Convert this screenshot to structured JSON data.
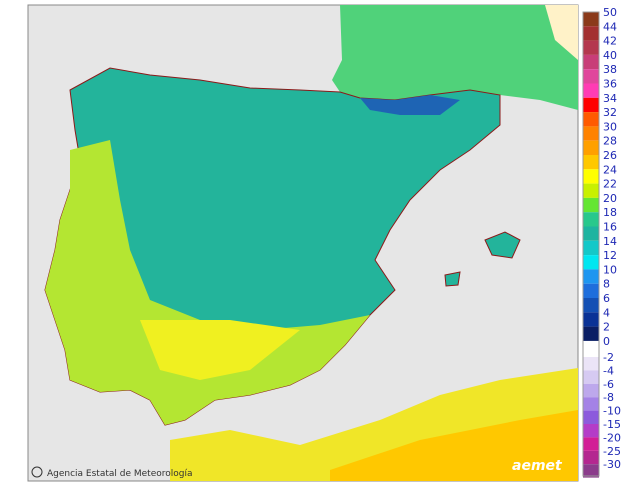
{
  "map": {
    "attribution": "Agencia Estatal de Meteorología",
    "logo": "aemet",
    "legend_positive": [
      {
        "label": "50",
        "color": "#8b3a1a"
      },
      {
        "label": "44",
        "color": "#a33030"
      },
      {
        "label": "42",
        "color": "#b4384e"
      },
      {
        "label": "40",
        "color": "#c83e78"
      },
      {
        "label": "38",
        "color": "#e0469c"
      },
      {
        "label": "36",
        "color": "#ff3cb4"
      },
      {
        "label": "34",
        "color": "#ff0000"
      },
      {
        "label": "32",
        "color": "#ff5a00"
      },
      {
        "label": "30",
        "color": "#ff8200"
      },
      {
        "label": "28",
        "color": "#ffa000"
      },
      {
        "label": "26",
        "color": "#ffc800"
      },
      {
        "label": "24",
        "color": "#ffff00"
      },
      {
        "label": "22",
        "color": "#c8f000"
      },
      {
        "label": "20",
        "color": "#64e632"
      },
      {
        "label": "18",
        "color": "#28c88c"
      },
      {
        "label": "16",
        "color": "#1eb4a0"
      },
      {
        "label": "14",
        "color": "#14c8c8"
      },
      {
        "label": "12",
        "color": "#00e6f0"
      },
      {
        "label": "10",
        "color": "#1e96f0"
      },
      {
        "label": "8",
        "color": "#1e6edc"
      },
      {
        "label": "6",
        "color": "#1450b4"
      },
      {
        "label": "4",
        "color": "#0a3296"
      },
      {
        "label": "2",
        "color": "#0a1e64"
      },
      {
        "label": "0",
        "color": "#0a1e64"
      }
    ],
    "legend_negative": [
      {
        "label": "-2",
        "color": "#ebe4f7"
      },
      {
        "label": "-4",
        "color": "#d6caf2"
      },
      {
        "label": "-6",
        "color": "#bda8ec"
      },
      {
        "label": "-8",
        "color": "#a482e6"
      },
      {
        "label": "-10",
        "color": "#8c5adc"
      },
      {
        "label": "-15",
        "color": "#b43cc8"
      },
      {
        "label": "-20",
        "color": "#d21e96"
      },
      {
        "label": "-25",
        "color": "#b42890"
      },
      {
        "label": "-30",
        "color": "#8c3c8c"
      }
    ]
  }
}
